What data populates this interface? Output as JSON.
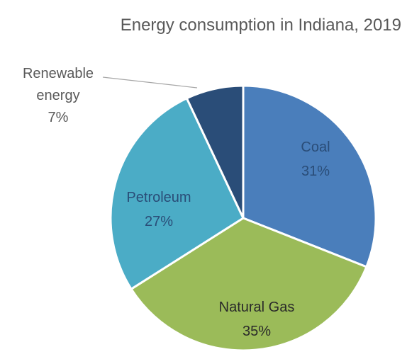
{
  "chart_data": {
    "type": "pie",
    "title": "Energy consumption in Indiana, 2019",
    "slices": [
      {
        "label": "Coal",
        "pct_label": "31%",
        "value": 31,
        "color": "#4a7ebb"
      },
      {
        "label": "Natural Gas",
        "pct_label": "35%",
        "value": 35,
        "color": "#9bbb59"
      },
      {
        "label": "Petroleum",
        "pct_label": "27%",
        "value": 27,
        "color": "#4bacc6"
      },
      {
        "label_lines": [
          "Renewable",
          "energy"
        ],
        "pct_label": "7%",
        "value": 7,
        "color": "#2a4d78"
      }
    ],
    "legend": "none"
  }
}
